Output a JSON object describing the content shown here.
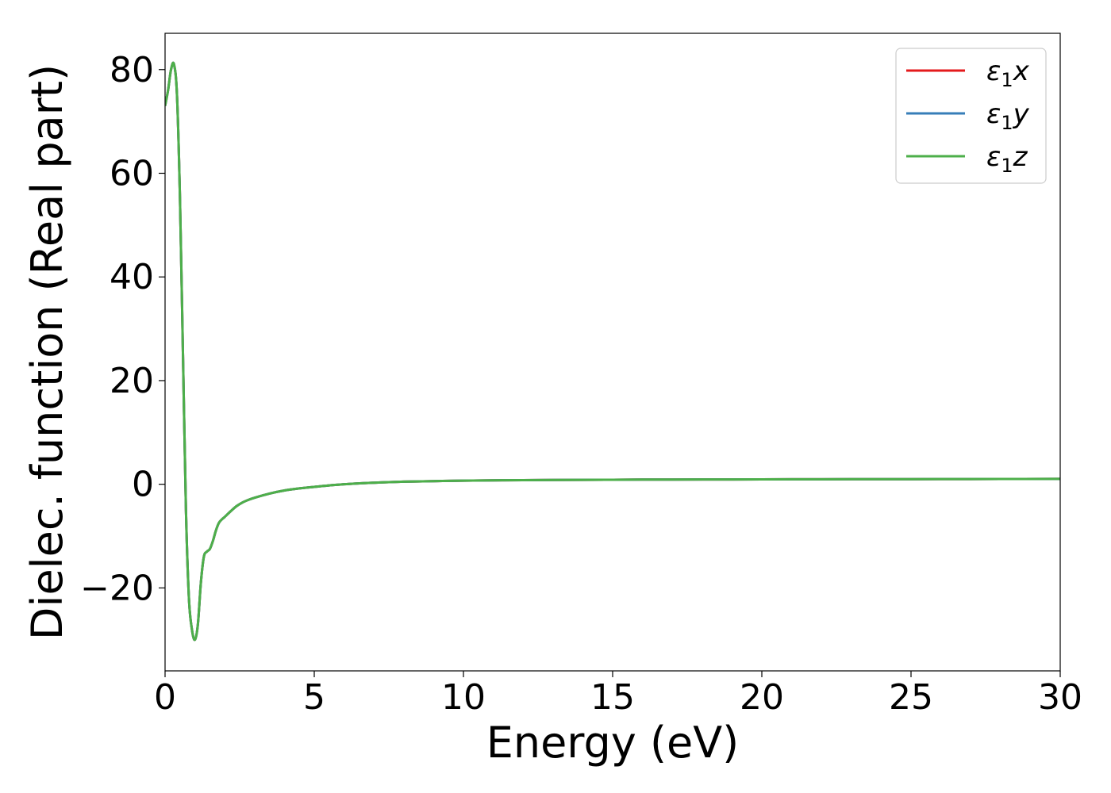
{
  "chart_data": {
    "type": "line",
    "title": "",
    "xlabel": "Energy (eV)",
    "ylabel": "Dielec. function (Real part)",
    "xlim": [
      0,
      30
    ],
    "ylim": [
      -36,
      87
    ],
    "xticks": [
      0,
      5,
      10,
      15,
      20,
      25,
      30
    ],
    "xtick_labels": [
      "0",
      "5",
      "10",
      "15",
      "20",
      "25",
      "30"
    ],
    "yticks": [
      -20,
      0,
      20,
      40,
      60,
      80
    ],
    "ytick_labels": [
      "−20",
      "0",
      "20",
      "40",
      "60",
      "80"
    ],
    "grid": false,
    "legend_position": "top-right",
    "x": [
      0,
      0.1,
      0.2,
      0.3,
      0.4,
      0.5,
      0.6,
      0.7,
      0.8,
      0.9,
      1.0,
      1.1,
      1.2,
      1.3,
      1.4,
      1.5,
      1.6,
      1.7,
      1.8,
      1.9,
      2.0,
      2.2,
      2.4,
      2.6,
      2.8,
      3.0,
      3.5,
      4.0,
      4.5,
      5.0,
      6.0,
      7.0,
      8.0,
      9.0,
      10.0,
      12.0,
      14.0,
      16.0,
      18.0,
      20.0,
      22.0,
      24.0,
      26.0,
      28.0,
      30.0
    ],
    "series": [
      {
        "name_main": "ε",
        "name_sub": "1",
        "name_axis": "x",
        "color": "#e41a1c",
        "values": [
          73,
          76,
          80,
          81,
          75,
          55,
          25,
          -5,
          -22,
          -28,
          -30,
          -27,
          -19,
          -14,
          -13,
          -12.5,
          -11,
          -9,
          -7.5,
          -6.8,
          -6.3,
          -5.2,
          -4.2,
          -3.5,
          -3.0,
          -2.6,
          -1.8,
          -1.2,
          -0.8,
          -0.5,
          0.0,
          0.3,
          0.5,
          0.6,
          0.7,
          0.8,
          0.85,
          0.9,
          0.92,
          0.95,
          0.97,
          0.98,
          1.0,
          1.02,
          1.05
        ]
      },
      {
        "name_main": "ε",
        "name_sub": "1",
        "name_axis": "y",
        "color": "#377eb8",
        "values": [
          73,
          76,
          80,
          81,
          75,
          55,
          25,
          -5,
          -22,
          -28,
          -30,
          -27,
          -19,
          -14,
          -13,
          -12.5,
          -11,
          -9,
          -7.5,
          -6.8,
          -6.3,
          -5.2,
          -4.2,
          -3.5,
          -3.0,
          -2.6,
          -1.8,
          -1.2,
          -0.8,
          -0.5,
          0.0,
          0.3,
          0.5,
          0.6,
          0.7,
          0.8,
          0.85,
          0.9,
          0.92,
          0.95,
          0.97,
          0.98,
          1.0,
          1.02,
          1.05
        ]
      },
      {
        "name_main": "ε",
        "name_sub": "1",
        "name_axis": "z",
        "color": "#4daf4a",
        "values": [
          73,
          76,
          80,
          81,
          75,
          55,
          25,
          -5,
          -22,
          -28,
          -30,
          -27,
          -19,
          -14,
          -13,
          -12.5,
          -11,
          -9,
          -7.5,
          -6.8,
          -6.3,
          -5.2,
          -4.2,
          -3.5,
          -3.0,
          -2.6,
          -1.8,
          -1.2,
          -0.8,
          -0.5,
          0.0,
          0.3,
          0.5,
          0.6,
          0.7,
          0.8,
          0.85,
          0.9,
          0.92,
          0.95,
          0.97,
          0.98,
          1.0,
          1.02,
          1.05
        ]
      }
    ]
  }
}
